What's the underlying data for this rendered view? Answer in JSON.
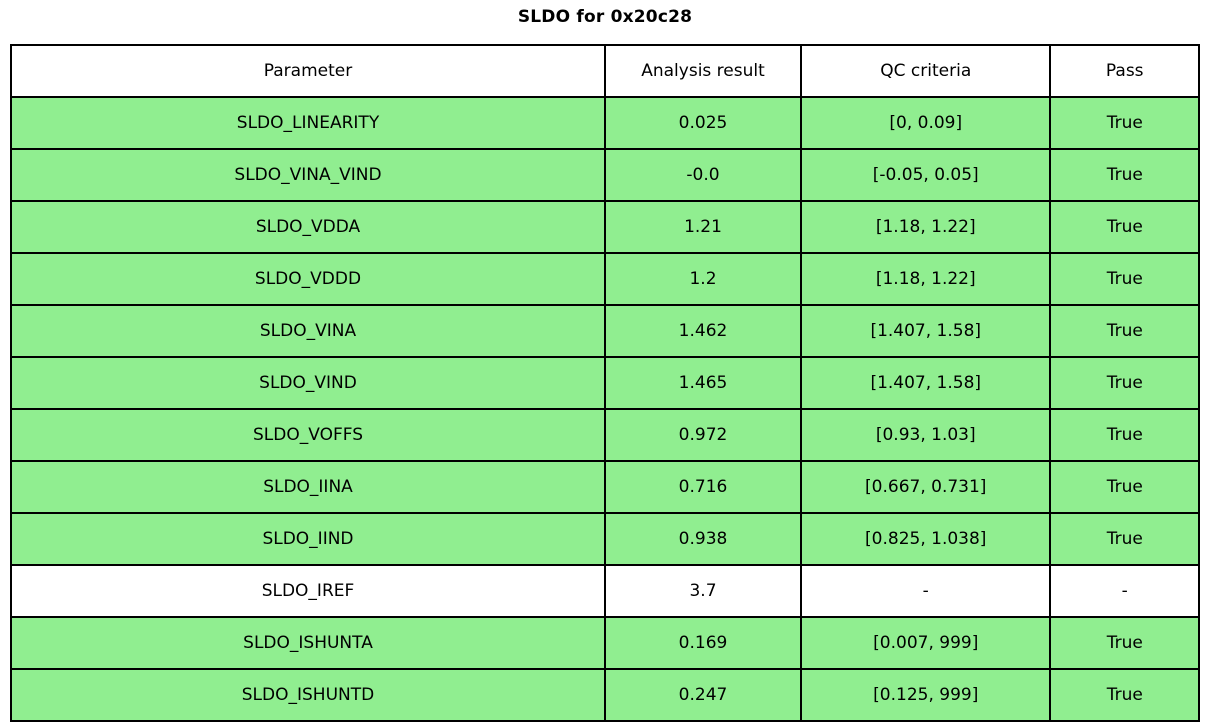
{
  "title": "SLDO for 0x20c28",
  "table": {
    "headers": [
      "Parameter",
      "Analysis result",
      "QC criteria",
      "Pass"
    ],
    "rows": [
      {
        "parameter": "SLDO_LINEARITY",
        "result": "0.025",
        "criteria": "[0, 0.09]",
        "pass": "True",
        "state": "pass"
      },
      {
        "parameter": "SLDO_VINA_VIND",
        "result": "-0.0",
        "criteria": "[-0.05, 0.05]",
        "pass": "True",
        "state": "pass"
      },
      {
        "parameter": "SLDO_VDDA",
        "result": "1.21",
        "criteria": "[1.18, 1.22]",
        "pass": "True",
        "state": "pass"
      },
      {
        "parameter": "SLDO_VDDD",
        "result": "1.2",
        "criteria": "[1.18, 1.22]",
        "pass": "True",
        "state": "pass"
      },
      {
        "parameter": "SLDO_VINA",
        "result": "1.462",
        "criteria": "[1.407, 1.58]",
        "pass": "True",
        "state": "pass"
      },
      {
        "parameter": "SLDO_VIND",
        "result": "1.465",
        "criteria": "[1.407, 1.58]",
        "pass": "True",
        "state": "pass"
      },
      {
        "parameter": "SLDO_VOFFS",
        "result": "0.972",
        "criteria": "[0.93, 1.03]",
        "pass": "True",
        "state": "pass"
      },
      {
        "parameter": "SLDO_IINA",
        "result": "0.716",
        "criteria": "[0.667, 0.731]",
        "pass": "True",
        "state": "pass"
      },
      {
        "parameter": "SLDO_IIND",
        "result": "0.938",
        "criteria": "[0.825, 1.038]",
        "pass": "True",
        "state": "pass"
      },
      {
        "parameter": "SLDO_IREF",
        "result": "3.7",
        "criteria": "-",
        "pass": "-",
        "state": "none"
      },
      {
        "parameter": "SLDO_ISHUNTA",
        "result": "0.169",
        "criteria": "[0.007, 999]",
        "pass": "True",
        "state": "pass"
      },
      {
        "parameter": "SLDO_ISHUNTD",
        "result": "0.247",
        "criteria": "[0.125, 999]",
        "pass": "True",
        "state": "pass"
      }
    ]
  },
  "colors": {
    "pass_row_green": "#90EE90",
    "border": "#000000",
    "background": "#FFFFFF",
    "text": "#000000"
  },
  "chart_data": {
    "type": "table",
    "title": "SLDO for 0x20c28",
    "columns": [
      "Parameter",
      "Analysis result",
      "QC criteria",
      "Pass"
    ],
    "rows": [
      [
        "SLDO_LINEARITY",
        0.025,
        "[0, 0.09]",
        "True"
      ],
      [
        "SLDO_VINA_VIND",
        -0.0,
        "[-0.05, 0.05]",
        "True"
      ],
      [
        "SLDO_VDDA",
        1.21,
        "[1.18, 1.22]",
        "True"
      ],
      [
        "SLDO_VDDD",
        1.2,
        "[1.18, 1.22]",
        "True"
      ],
      [
        "SLDO_VINA",
        1.462,
        "[1.407, 1.58]",
        "True"
      ],
      [
        "SLDO_VIND",
        1.465,
        "[1.407, 1.58]",
        "True"
      ],
      [
        "SLDO_VOFFS",
        0.972,
        "[0.93, 1.03]",
        "True"
      ],
      [
        "SLDO_IINA",
        0.716,
        "[0.667, 0.731]",
        "True"
      ],
      [
        "SLDO_IIND",
        0.938,
        "[0.825, 1.038]",
        "True"
      ],
      [
        "SLDO_IREF",
        3.7,
        "-",
        "-"
      ],
      [
        "SLDO_ISHUNTA",
        0.169,
        "[0.007, 999]",
        "True"
      ],
      [
        "SLDO_ISHUNTD",
        0.247,
        "[0.125, 999]",
        "True"
      ]
    ],
    "layout_hints": {
      "highlight": "rows with Pass=True filled light green, SLDO_IREF row unfilled",
      "grid": "on",
      "title_position": "top-center, bold"
    }
  }
}
